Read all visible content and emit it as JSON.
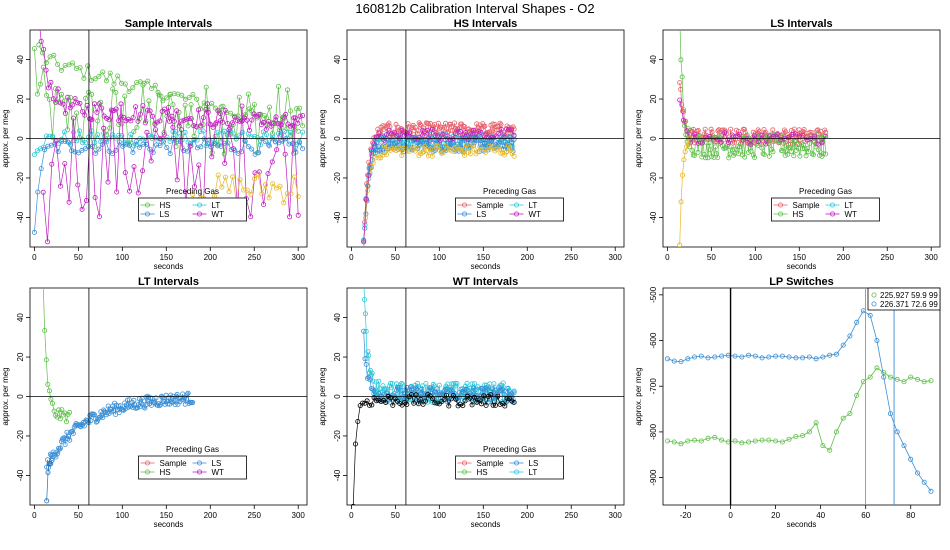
{
  "suptitle": "160812b   Calibration Interval Shapes - O2",
  "colors": {
    "Sample": "#e8606a",
    "HS": "#5fbf4a",
    "LS": "#3a8fd6",
    "LT": "#2ec8d8",
    "WT": "#c21fc2",
    "Black": "#000000"
  },
  "chart_data": [
    {
      "type": "scatter",
      "title": "Sample Intervals",
      "xlabel": "seconds",
      "ylabel": "approx. per meg",
      "xlim": [
        -5,
        310
      ],
      "ylim": [
        -55,
        55
      ],
      "xticks": [
        0,
        50,
        100,
        150,
        200,
        250,
        300
      ],
      "yticks": [
        -40,
        -20,
        0,
        20,
        40
      ],
      "vline": 62,
      "hline": 0,
      "legend": {
        "title": "Preceding Gas",
        "entries": [
          "HS",
          "LT",
          "LS",
          "WT"
        ],
        "position": "bottom-center"
      },
      "series": [
        {
          "name": "HS",
          "color": "HS",
          "x0": 0,
          "x1": 305,
          "n": 90,
          "start": 40,
          "tau": 8,
          "end": 10,
          "noise": 18,
          "line": true
        },
        {
          "name": "HS",
          "color": "HS",
          "x0": 5,
          "x1": 300,
          "n": 70,
          "start": 45,
          "tau": 6,
          "end": 40,
          "noise": 4,
          "line": true,
          "drift": -0.12
        },
        {
          "name": "LT",
          "color": "LT",
          "x0": 0,
          "x1": 305,
          "n": 90,
          "start": -5,
          "tau": 8,
          "end": 0,
          "noise": 4,
          "line": true
        },
        {
          "name": "LS",
          "color": "LS",
          "x0": 0,
          "x1": 305,
          "n": 80,
          "start": -50,
          "tau": 5,
          "end": -4,
          "noise": 4,
          "line": true
        },
        {
          "name": "WT",
          "color": "WT",
          "x0": 5,
          "x1": 305,
          "n": 110,
          "start": 60,
          "tau": 10,
          "end": 16,
          "noise": 5,
          "line": true,
          "drift": -0.03
        },
        {
          "name": "WT",
          "color": "WT",
          "x0": 10,
          "x1": 300,
          "n": 60,
          "start": -55,
          "tau": 6,
          "end": -10,
          "noise": 30,
          "line": true
        },
        {
          "name": "",
          "color": "Sample",
          "x0": 180,
          "x1": 300,
          "n": 30,
          "start": -30,
          "tau": 20,
          "end": -25,
          "noise": 8,
          "line": true,
          "tint": "#e8b828"
        }
      ]
    },
    {
      "type": "scatter",
      "title": "HS Intervals",
      "xlabel": "seconds",
      "ylabel": "approx. per meg",
      "xlim": [
        -5,
        310
      ],
      "ylim": [
        -55,
        55
      ],
      "xticks": [
        0,
        50,
        100,
        150,
        200,
        250,
        300
      ],
      "yticks": [
        -40,
        -20,
        0,
        20,
        40
      ],
      "vline": 62,
      "hline": 0,
      "legend": {
        "title": "Preceding Gas",
        "entries": [
          "Sample",
          "LT",
          "LS",
          "WT"
        ],
        "position": "bottom-center"
      },
      "series": [
        {
          "name": "Sample",
          "color": "Sample",
          "x0": 14,
          "x1": 185,
          "n": 150,
          "start": -55,
          "tau": 5,
          "end": 4,
          "noise": 4,
          "line": true
        },
        {
          "name": "LT",
          "color": "LT",
          "x0": 14,
          "x1": 185,
          "n": 120,
          "start": -55,
          "tau": 5,
          "end": -1,
          "noise": 4,
          "line": true
        },
        {
          "name": "LS",
          "color": "LS",
          "x0": 14,
          "x1": 185,
          "n": 140,
          "start": -55,
          "tau": 5,
          "end": -3,
          "noise": 4,
          "line": true
        },
        {
          "name": "",
          "color": "Sample",
          "x0": 14,
          "x1": 185,
          "n": 80,
          "start": -55,
          "tau": 5,
          "end": -6,
          "noise": 3,
          "line": true,
          "tint": "#e8b828"
        },
        {
          "name": "WT",
          "color": "WT",
          "x0": 14,
          "x1": 185,
          "n": 60,
          "start": -55,
          "tau": 5,
          "end": 2,
          "noise": 3,
          "line": true
        }
      ]
    },
    {
      "type": "scatter",
      "title": "LS Intervals",
      "xlabel": "seconds",
      "ylabel": "approx. per meg",
      "xlim": [
        -5,
        310
      ],
      "ylim": [
        -55,
        55
      ],
      "xticks": [
        0,
        50,
        100,
        150,
        200,
        250,
        300
      ],
      "yticks": [
        -40,
        -20,
        0,
        20,
        40
      ],
      "vline": null,
      "hline": 0,
      "legend": {
        "title": "Preceding Gas",
        "entries": [
          "Sample",
          "LT",
          "HS",
          "WT"
        ],
        "position": "bottom-center"
      },
      "series": [
        {
          "name": "Sample",
          "color": "Sample",
          "x0": 14,
          "x1": 180,
          "n": 150,
          "start": 30,
          "tau": 4,
          "end": 1,
          "noise": 4,
          "line": true
        },
        {
          "name": "HS",
          "color": "HS",
          "x0": 14,
          "x1": 180,
          "n": 120,
          "start": 60,
          "tau": 4,
          "end": -4,
          "noise": 6,
          "line": true
        },
        {
          "name": "WT",
          "color": "WT",
          "x0": 14,
          "x1": 180,
          "n": 40,
          "start": 20,
          "tau": 4,
          "end": 0,
          "noise": 3,
          "line": true
        },
        {
          "name": "",
          "color": "Sample",
          "x0": 14,
          "x1": 25,
          "n": 8,
          "start": -55,
          "tau": 3,
          "end": 0,
          "noise": 2,
          "line": true,
          "tint": "#e8b828"
        }
      ]
    },
    {
      "type": "scatter",
      "title": "LT Intervals",
      "xlabel": "seconds",
      "ylabel": "approx. per meg",
      "xlim": [
        -5,
        310
      ],
      "ylim": [
        -55,
        55
      ],
      "xticks": [
        0,
        50,
        100,
        150,
        200,
        250,
        300
      ],
      "yticks": [
        -40,
        -20,
        0,
        20,
        40
      ],
      "vline": 62,
      "hline": 0,
      "legend": {
        "title": "Preceding Gas",
        "entries": [
          "Sample",
          "LS",
          "HS",
          "WT"
        ],
        "position": "bottom-center"
      },
      "series": [
        {
          "name": "HS",
          "color": "HS",
          "x0": 10,
          "x1": 40,
          "n": 18,
          "start": 55,
          "tau": 4,
          "end": -10,
          "noise": 3,
          "line": true
        },
        {
          "name": "LS",
          "color": "LS",
          "x0": 14,
          "x1": 180,
          "n": 160,
          "start": -35,
          "tau": 45,
          "end": 0,
          "noise": 3,
          "line": true
        },
        {
          "name": "",
          "color": "Sample",
          "x0": 14,
          "x1": 20,
          "n": 5,
          "start": -52,
          "tau": 2,
          "end": -30,
          "noise": 2,
          "line": true,
          "tint": "#1f6fb8"
        }
      ]
    },
    {
      "type": "scatter",
      "title": "WT Intervals",
      "xlabel": "seconds",
      "ylabel": "approx. per meg",
      "xlim": [
        -5,
        310
      ],
      "ylim": [
        -55,
        55
      ],
      "xticks": [
        0,
        50,
        100,
        150,
        200,
        250,
        300
      ],
      "yticks": [
        -40,
        -20,
        0,
        20,
        40
      ],
      "vline": 62,
      "hline": 0,
      "legend": {
        "title": "Preceding Gas",
        "entries": [
          "Sample",
          "LS",
          "HS",
          "LT"
        ],
        "position": "bottom-center"
      },
      "series": [
        {
          "name": "LT",
          "color": "LT",
          "x0": 14,
          "x1": 185,
          "n": 180,
          "start": 60,
          "tau": 4,
          "end": 2,
          "noise": 5,
          "line": true
        },
        {
          "name": "LS",
          "color": "LS",
          "x0": 14,
          "x1": 185,
          "n": 120,
          "start": 30,
          "tau": 4,
          "end": 1,
          "noise": 4,
          "line": true
        },
        {
          "name": "",
          "color": "Black",
          "x0": 2,
          "x1": 185,
          "n": 70,
          "start": -55,
          "tau": 3,
          "end": -2,
          "noise": 3,
          "line": true
        }
      ]
    },
    {
      "type": "scatter",
      "title": "LP Switches",
      "xlabel": "seconds",
      "ylabel": "approx. per meg",
      "xlim": [
        -30,
        93
      ],
      "ylim": [
        -960,
        -485
      ],
      "xticks": [
        -20,
        0,
        20,
        40,
        60,
        80
      ],
      "yticks": [
        -900,
        -800,
        -700,
        -600,
        -500
      ],
      "vline": 0,
      "hline": null,
      "vlines_colored": [
        {
          "x": 59.9,
          "color": "HS"
        },
        {
          "x": 72.6,
          "color": "LS"
        }
      ],
      "legend": {
        "title": "",
        "entries": [
          "225.927 59.9 99",
          "226.371 72.6 99"
        ],
        "colors": [
          "HS",
          "LS"
        ],
        "position": "top-right"
      },
      "lp_series": [
        {
          "name": "225.927 59.9 99",
          "color": "HS",
          "x": [
            -28,
            -25,
            -22,
            -19,
            -16,
            -13,
            -10,
            -7,
            -4,
            -1,
            2,
            5,
            8,
            11,
            14,
            17,
            20,
            23,
            26,
            29,
            32,
            35,
            38,
            41,
            44,
            47,
            50,
            53,
            56,
            59,
            62,
            65,
            68,
            71,
            74,
            77,
            80,
            83,
            86,
            89
          ],
          "y": [
            -820,
            -822,
            -826,
            -820,
            -818,
            -820,
            -814,
            -812,
            -818,
            -822,
            -820,
            -824,
            -822,
            -820,
            -818,
            -818,
            -820,
            -822,
            -816,
            -810,
            -808,
            -800,
            -780,
            -830,
            -840,
            -800,
            -770,
            -760,
            -720,
            -690,
            -680,
            -660,
            -670,
            -680,
            -685,
            -690,
            -680,
            -685,
            -690,
            -688
          ]
        },
        {
          "name": "226.371 72.6 99",
          "color": "LS",
          "x": [
            -28,
            -25,
            -22,
            -19,
            -16,
            -13,
            -10,
            -7,
            -4,
            -1,
            2,
            5,
            8,
            11,
            14,
            17,
            20,
            23,
            26,
            29,
            32,
            35,
            38,
            41,
            44,
            47,
            50,
            53,
            56,
            59,
            62,
            65,
            68,
            71,
            74,
            77,
            80,
            83,
            86,
            89
          ],
          "y": [
            -640,
            -645,
            -646,
            -640,
            -636,
            -634,
            -638,
            -636,
            -634,
            -632,
            -634,
            -636,
            -632,
            -634,
            -638,
            -636,
            -634,
            -634,
            -636,
            -638,
            -638,
            -636,
            -640,
            -636,
            -632,
            -630,
            -610,
            -590,
            -560,
            -535,
            -545,
            -600,
            -680,
            -760,
            -800,
            -830,
            -860,
            -890,
            -910,
            -930
          ]
        }
      ]
    }
  ]
}
